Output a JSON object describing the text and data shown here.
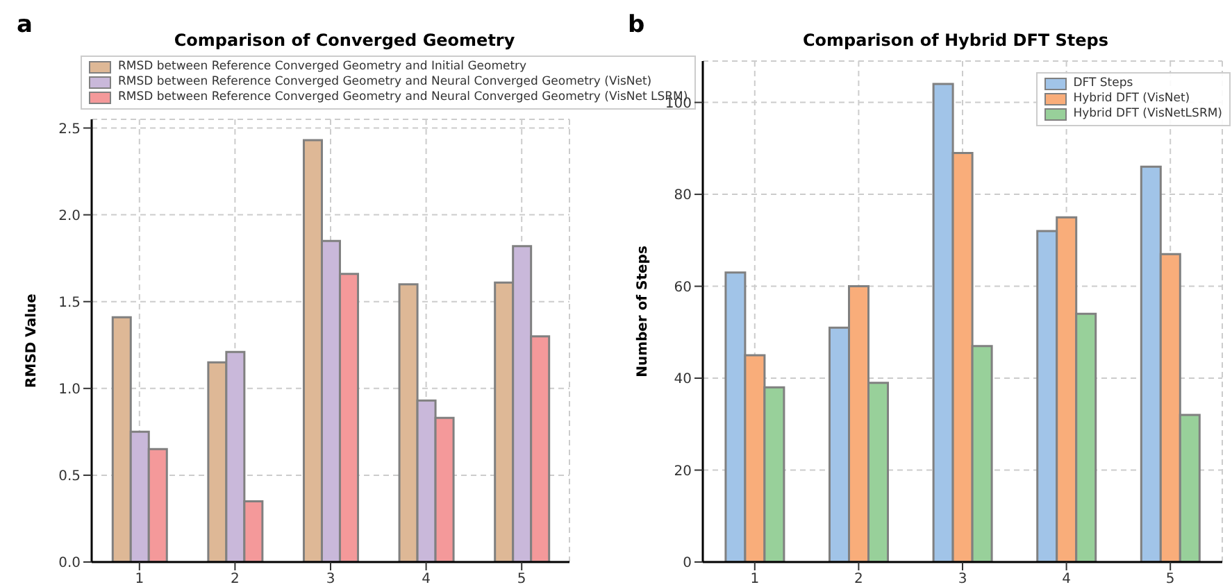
{
  "chart_data": [
    {
      "type": "bar",
      "title": "Comparison of Converged Geometry",
      "ylabel": "RMSD Value",
      "annotations": [
        "a"
      ],
      "categories": [
        "1",
        "2",
        "3",
        "4",
        "5"
      ],
      "series": [
        {
          "name": "RMSD between Reference Converged Geometry and Initial Geometry",
          "color": "#deb896",
          "values": [
            1.41,
            1.15,
            2.43,
            1.6,
            1.61
          ]
        },
        {
          "name": "RMSD between Reference Converged Geometry and Neural Converged Geometry (VisNet)",
          "color": "#c9b8da",
          "values": [
            0.75,
            1.21,
            1.85,
            0.93,
            1.82
          ]
        },
        {
          "name": "RMSD between Reference Converged Geometry and Neural Converged Geometry (VisNet LSRM)",
          "color": "#f4999a",
          "values": [
            0.65,
            0.35,
            1.66,
            0.83,
            1.3
          ]
        }
      ],
      "ylim": [
        0,
        2.55
      ],
      "yticks": [
        {
          "value": 0,
          "label": "0.0"
        },
        0.5,
        {
          "value": 1,
          "label": "1.0"
        },
        1.5,
        {
          "value": 2,
          "label": "2.0"
        },
        2.5
      ],
      "grid": true,
      "legend": "top"
    },
    {
      "type": "bar",
      "title": "Comparison of Hybrid DFT Steps",
      "ylabel": "Number of Steps",
      "annotations": [
        "b"
      ],
      "categories": [
        "1",
        "2",
        "3",
        "4",
        "5"
      ],
      "series": [
        {
          "name": "DFT Steps",
          "color": "#a1c4e8",
          "values": [
            63,
            51,
            104,
            72,
            86
          ]
        },
        {
          "name": "Hybrid DFT (VisNet)",
          "color": "#f9ad7a",
          "values": [
            45,
            60,
            89,
            75,
            67
          ]
        },
        {
          "name": "Hybrid DFT (VisNetLSRM)",
          "color": "#98d09a",
          "values": [
            38,
            39,
            47,
            54,
            32
          ]
        }
      ],
      "ylim": [
        0,
        109
      ],
      "yticks": [
        0,
        20,
        40,
        60,
        80,
        100
      ],
      "grid": true,
      "legend": "top right"
    }
  ]
}
